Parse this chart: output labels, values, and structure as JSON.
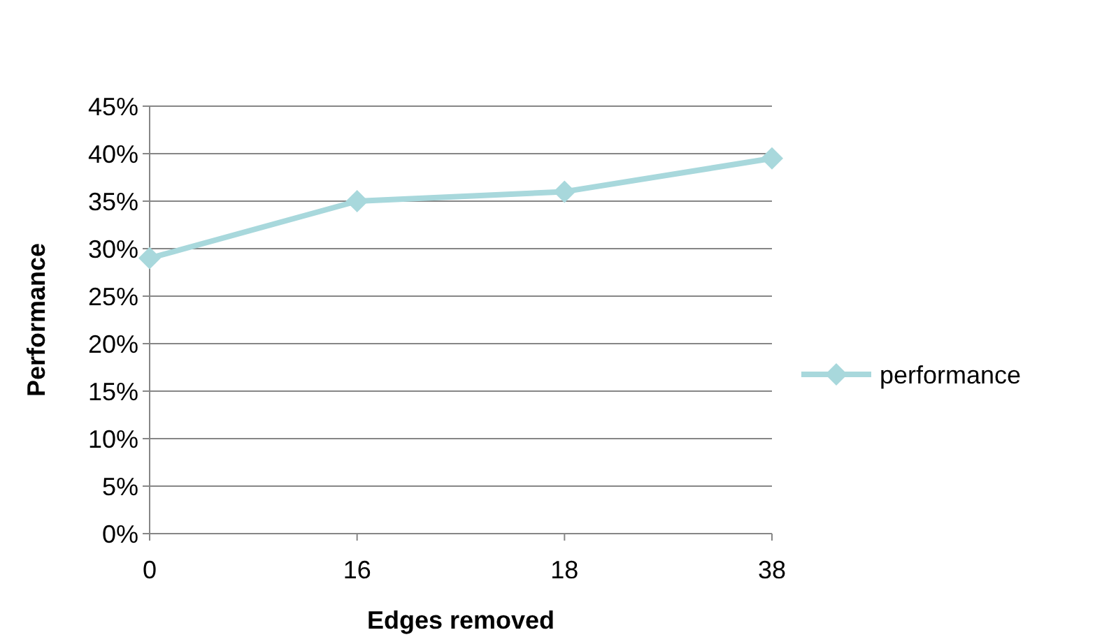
{
  "chart_data": {
    "type": "line",
    "xlabel": "Edges removed",
    "ylabel": "Performance",
    "categories": [
      "0",
      "16",
      "18",
      "38"
    ],
    "series": [
      {
        "name": "performance",
        "color": "#a8d8dc",
        "values": [
          29,
          35,
          36,
          39.5
        ]
      }
    ],
    "ylim": [
      0,
      45
    ],
    "yticks": [
      {
        "value": 0,
        "label": "0%"
      },
      {
        "value": 5,
        "label": "5%"
      },
      {
        "value": 10,
        "label": "10%"
      },
      {
        "value": 15,
        "label": "15%"
      },
      {
        "value": 20,
        "label": "20%"
      },
      {
        "value": 25,
        "label": "25%"
      },
      {
        "value": 30,
        "label": "30%"
      },
      {
        "value": 35,
        "label": "35%"
      },
      {
        "value": 40,
        "label": "40%"
      },
      {
        "value": 45,
        "label": "45%"
      }
    ],
    "grid": "y",
    "legend": "right",
    "marker": "diamond",
    "line_style": "solid"
  }
}
